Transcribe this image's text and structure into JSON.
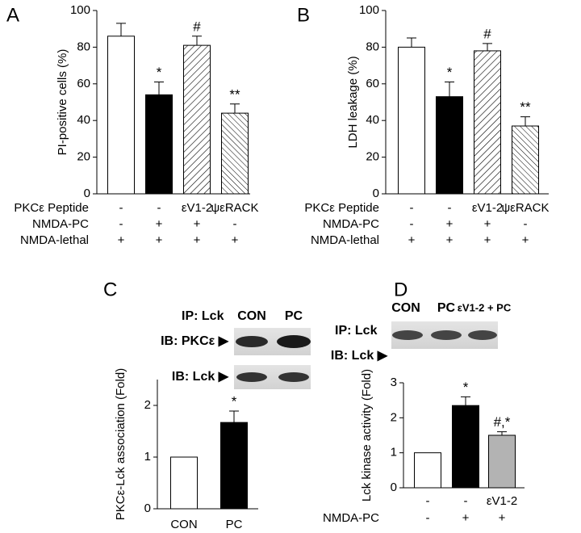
{
  "chart_data": [
    {
      "type": "bar",
      "panel": "A",
      "ylabel": "PI-positive cells (%)",
      "values": [
        86,
        54,
        81,
        44
      ],
      "errors": [
        7,
        7,
        5,
        5
      ],
      "markers": [
        null,
        "*",
        "#",
        "**"
      ],
      "fills": [
        "#ffffff",
        "#000000",
        "hatch-up",
        "hatch-down"
      ],
      "ylim": [
        0,
        100
      ],
      "yticks": [
        0,
        20,
        40,
        60,
        80,
        100
      ],
      "conditions": [
        {
          "label": "PKCε Peptide",
          "cells": [
            "-",
            "-",
            "εV1-2",
            "ψεRACK"
          ]
        },
        {
          "label": "NMDA-PC",
          "cells": [
            "-",
            "+",
            "+",
            "-"
          ]
        },
        {
          "label": "NMDA-lethal",
          "cells": [
            "+",
            "+",
            "+",
            "+"
          ]
        }
      ]
    },
    {
      "type": "bar",
      "panel": "B",
      "ylabel": "LDH leakage (%)",
      "values": [
        80,
        53,
        78,
        37
      ],
      "errors": [
        5,
        8,
        4,
        5
      ],
      "markers": [
        null,
        "*",
        "#",
        "**"
      ],
      "fills": [
        "#ffffff",
        "#000000",
        "hatch-up",
        "hatch-down"
      ],
      "ylim": [
        0,
        100
      ],
      "yticks": [
        0,
        20,
        40,
        60,
        80,
        100
      ],
      "conditions": [
        {
          "label": "PKCε Peptide",
          "cells": [
            "-",
            "-",
            "εV1-2",
            "ψεRACK"
          ]
        },
        {
          "label": "NMDA-PC",
          "cells": [
            "-",
            "+",
            "+",
            "-"
          ]
        },
        {
          "label": "NMDA-lethal",
          "cells": [
            "+",
            "+",
            "+",
            "+"
          ]
        }
      ]
    },
    {
      "type": "bar",
      "panel": "C",
      "ylabel": "PKCε-Lck association (Fold)",
      "categories": [
        "CON",
        "PC"
      ],
      "values": [
        1,
        1.67
      ],
      "errors": [
        null,
        0.22
      ],
      "markers": [
        null,
        "*"
      ],
      "fills": [
        "#ffffff",
        "#000000"
      ],
      "ylim": [
        0,
        2.5
      ],
      "yticks": [
        0,
        1,
        2
      ],
      "blot": {
        "ip": "IP: Lck",
        "lanes": [
          "CON",
          "PC"
        ],
        "rows": [
          "IB: PKCε ▶",
          "IB: Lck ▶"
        ]
      }
    },
    {
      "type": "bar",
      "panel": "D",
      "ylabel": "Lck kinase activity (Fold)",
      "values": [
        1,
        2.35,
        1.5
      ],
      "errors": [
        null,
        0.25,
        0.1
      ],
      "markers": [
        null,
        "*",
        "#,*"
      ],
      "fills": [
        "#ffffff",
        "#000000",
        "#b3b3b3"
      ],
      "ylim": [
        0,
        3
      ],
      "yticks": [
        0,
        1,
        2,
        3
      ],
      "conditions": [
        {
          "label": null,
          "cells": [
            "-",
            "-",
            "εV1-2"
          ]
        },
        {
          "label": "NMDA-PC",
          "cells": [
            "-",
            "+",
            "+"
          ]
        }
      ],
      "blot": {
        "ip": "IP: Lck",
        "lanes": [
          "CON",
          "PC",
          "εV1-2 + PC"
        ],
        "rows": [
          "IB: Lck ▶"
        ]
      }
    }
  ]
}
